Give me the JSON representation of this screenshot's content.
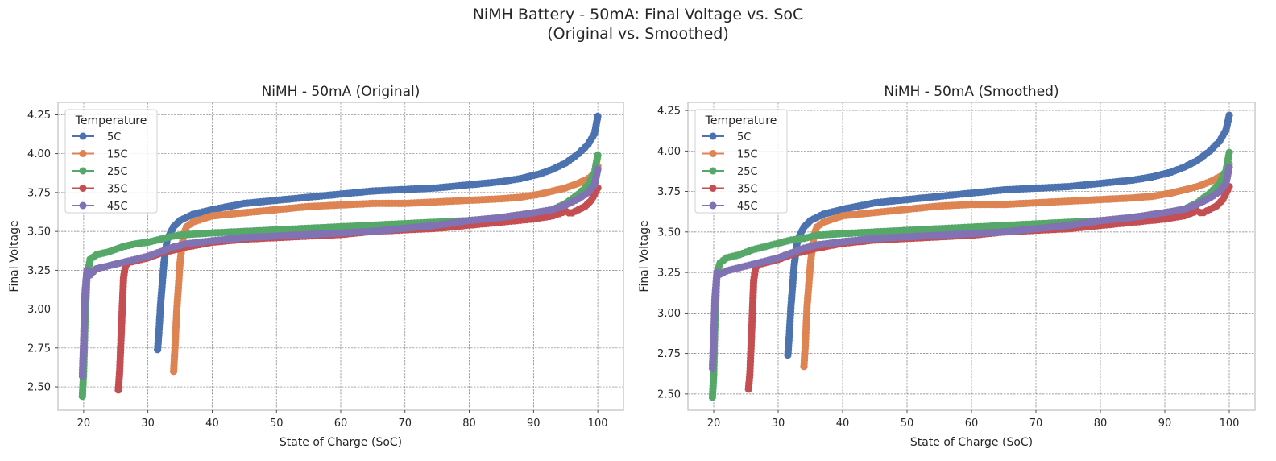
{
  "suptitle": {
    "line1": "NiMH Battery - 50mA: Final Voltage vs. SoC",
    "line2": "(Original vs. Smoothed)"
  },
  "colors": {
    "5C": "#4c72b0",
    "15C": "#dd8452",
    "25C": "#55a868",
    "35C": "#c44e52",
    "45C": "#8172b3",
    "grid": "#808080",
    "frame": "#cccccc"
  },
  "chart_data": [
    {
      "type": "line",
      "title": "NiMH - 50mA (Original)",
      "xlabel": "State of Charge (SoC)",
      "ylabel": "Final Voltage",
      "xlim": [
        16,
        104
      ],
      "ylim": [
        2.35,
        4.33
      ],
      "xticks": [
        20,
        30,
        40,
        50,
        60,
        70,
        80,
        90,
        100
      ],
      "yticks": [
        2.5,
        2.75,
        3.0,
        3.25,
        3.5,
        3.75,
        4.0,
        4.25
      ],
      "ytick_labels": [
        "2.50",
        "2.75",
        "3.00",
        "3.25",
        "3.50",
        "3.75",
        "4.00",
        "4.25"
      ],
      "grid": true,
      "legend": {
        "title": "Temperature",
        "placement": "top-left"
      },
      "series": [
        {
          "name": "5C",
          "x": [
            31.5,
            31.7,
            32.0,
            32.5,
            33.0,
            34.0,
            35.0,
            37.0,
            40.0,
            45.0,
            50.0,
            55.0,
            60.0,
            65.0,
            70.0,
            75.0,
            80.0,
            85.0,
            88.0,
            91.0,
            93.0,
            95.0,
            97.0,
            98.5,
            99.5,
            100.0
          ],
          "y": [
            2.74,
            2.85,
            3.05,
            3.3,
            3.45,
            3.53,
            3.57,
            3.61,
            3.64,
            3.68,
            3.7,
            3.72,
            3.74,
            3.76,
            3.77,
            3.78,
            3.8,
            3.82,
            3.84,
            3.87,
            3.9,
            3.94,
            4.0,
            4.06,
            4.13,
            4.24
          ]
        },
        {
          "name": "15C",
          "x": [
            34.0,
            34.2,
            34.5,
            35.0,
            35.5,
            36.0,
            37.0,
            40.0,
            45.0,
            50.0,
            55.0,
            60.0,
            65.0,
            70.0,
            75.0,
            80.0,
            85.0,
            88.0,
            91.0,
            93.0,
            95.0,
            97.0,
            98.5,
            99.5,
            100.0
          ],
          "y": [
            2.6,
            2.75,
            3.0,
            3.3,
            3.47,
            3.53,
            3.56,
            3.6,
            3.62,
            3.64,
            3.66,
            3.67,
            3.68,
            3.68,
            3.69,
            3.7,
            3.71,
            3.72,
            3.74,
            3.76,
            3.78,
            3.81,
            3.84,
            3.87,
            3.92
          ]
        },
        {
          "name": "25C",
          "x": [
            19.8,
            20.0,
            20.2,
            20.5,
            21.0,
            22.0,
            24.0,
            26.0,
            28.0,
            30.0,
            32.0,
            34.0,
            36.0,
            40.0,
            45.0,
            50.0,
            55.0,
            60.0,
            65.0,
            70.0,
            75.0,
            80.0,
            85.0,
            88.0,
            91.0,
            93.0,
            95.0,
            97.0,
            98.5,
            99.5,
            100.0
          ],
          "y": [
            2.44,
            2.6,
            2.9,
            3.2,
            3.32,
            3.35,
            3.37,
            3.4,
            3.42,
            3.43,
            3.45,
            3.47,
            3.48,
            3.49,
            3.5,
            3.51,
            3.52,
            3.53,
            3.54,
            3.55,
            3.56,
            3.57,
            3.58,
            3.59,
            3.61,
            3.64,
            3.68,
            3.74,
            3.8,
            3.88,
            3.99
          ]
        },
        {
          "name": "35C",
          "x": [
            25.4,
            25.6,
            25.8,
            26.0,
            26.2,
            26.5,
            27.0,
            28.0,
            30.0,
            32.0,
            34.0,
            36.0,
            40.0,
            45.0,
            50.0,
            55.0,
            60.0,
            65.0,
            70.0,
            75.0,
            80.0,
            85.0,
            90.0,
            93.0,
            95.0,
            95.5,
            96.0,
            97.0,
            98.0,
            99.0,
            100.0
          ],
          "y": [
            2.48,
            2.6,
            2.8,
            3.0,
            3.2,
            3.28,
            3.3,
            3.31,
            3.33,
            3.36,
            3.38,
            3.4,
            3.43,
            3.45,
            3.46,
            3.47,
            3.48,
            3.5,
            3.51,
            3.52,
            3.54,
            3.56,
            3.58,
            3.6,
            3.63,
            3.62,
            3.62,
            3.64,
            3.66,
            3.7,
            3.78
          ]
        },
        {
          "name": "45C",
          "x": [
            19.8,
            20.0,
            20.2,
            20.5,
            21.0,
            22.0,
            24.0,
            26.0,
            28.0,
            30.0,
            32.0,
            34.0,
            36.0,
            40.0,
            45.0,
            50.0,
            55.0,
            60.0,
            65.0,
            70.0,
            75.0,
            80.0,
            85.0,
            90.0,
            93.0,
            95.0,
            97.0,
            98.5,
            99.5,
            100.0
          ],
          "y": [
            2.57,
            2.8,
            3.1,
            3.25,
            3.22,
            3.26,
            3.28,
            3.3,
            3.32,
            3.34,
            3.37,
            3.4,
            3.42,
            3.44,
            3.46,
            3.47,
            3.48,
            3.49,
            3.5,
            3.52,
            3.54,
            3.57,
            3.59,
            3.62,
            3.64,
            3.67,
            3.71,
            3.75,
            3.8,
            3.9
          ]
        }
      ]
    },
    {
      "type": "line",
      "title": "NiMH - 50mA (Smoothed)",
      "xlabel": "State of Charge (SoC)",
      "ylabel": "Final Voltage",
      "xlim": [
        16,
        104
      ],
      "ylim": [
        2.4,
        4.3
      ],
      "xticks": [
        20,
        30,
        40,
        50,
        60,
        70,
        80,
        90,
        100
      ],
      "yticks": [
        2.5,
        2.75,
        3.0,
        3.25,
        3.5,
        3.75,
        4.0,
        4.25
      ],
      "ytick_labels": [
        "2.50",
        "2.75",
        "3.00",
        "3.25",
        "3.50",
        "3.75",
        "4.00",
        "4.25"
      ],
      "grid": true,
      "legend": {
        "title": "Temperature",
        "placement": "top-left"
      },
      "series": [
        {
          "name": "5C",
          "x": [
            31.5,
            31.7,
            32.0,
            32.5,
            33.0,
            34.0,
            35.0,
            37.0,
            40.0,
            45.0,
            50.0,
            55.0,
            60.0,
            65.0,
            70.0,
            75.0,
            80.0,
            85.0,
            88.0,
            91.0,
            93.0,
            95.0,
            97.0,
            98.5,
            99.5,
            100.0
          ],
          "y": [
            2.74,
            2.85,
            3.05,
            3.3,
            3.45,
            3.53,
            3.57,
            3.61,
            3.64,
            3.68,
            3.7,
            3.72,
            3.74,
            3.76,
            3.77,
            3.78,
            3.8,
            3.82,
            3.84,
            3.87,
            3.9,
            3.94,
            4.0,
            4.06,
            4.13,
            4.22
          ]
        },
        {
          "name": "15C",
          "x": [
            34.0,
            34.2,
            34.5,
            35.0,
            35.5,
            36.0,
            37.0,
            40.0,
            45.0,
            50.0,
            55.0,
            60.0,
            65.0,
            70.0,
            75.0,
            80.0,
            85.0,
            88.0,
            91.0,
            93.0,
            95.0,
            97.0,
            98.5,
            99.5,
            100.0
          ],
          "y": [
            2.67,
            2.8,
            3.05,
            3.3,
            3.47,
            3.53,
            3.56,
            3.6,
            3.62,
            3.64,
            3.66,
            3.67,
            3.67,
            3.68,
            3.69,
            3.7,
            3.71,
            3.72,
            3.74,
            3.76,
            3.78,
            3.81,
            3.84,
            3.87,
            3.92
          ]
        },
        {
          "name": "25C",
          "x": [
            19.8,
            20.0,
            20.2,
            20.5,
            21.0,
            22.0,
            24.0,
            26.0,
            28.0,
            30.0,
            32.0,
            34.0,
            36.0,
            40.0,
            45.0,
            50.0,
            55.0,
            60.0,
            65.0,
            70.0,
            75.0,
            80.0,
            85.0,
            88.0,
            91.0,
            93.0,
            95.0,
            97.0,
            98.5,
            99.5,
            100.0
          ],
          "y": [
            2.48,
            2.62,
            2.95,
            3.25,
            3.31,
            3.34,
            3.36,
            3.39,
            3.41,
            3.43,
            3.45,
            3.46,
            3.48,
            3.49,
            3.5,
            3.51,
            3.52,
            3.53,
            3.54,
            3.55,
            3.56,
            3.57,
            3.58,
            3.59,
            3.61,
            3.64,
            3.68,
            3.74,
            3.8,
            3.88,
            3.99
          ]
        },
        {
          "name": "35C",
          "x": [
            25.4,
            25.6,
            25.8,
            26.0,
            26.2,
            26.5,
            27.0,
            28.0,
            30.0,
            32.0,
            34.0,
            36.0,
            40.0,
            45.0,
            50.0,
            55.0,
            60.0,
            65.0,
            70.0,
            75.0,
            80.0,
            85.0,
            90.0,
            93.0,
            95.0,
            95.5,
            96.0,
            97.0,
            98.0,
            99.0,
            100.0
          ],
          "y": [
            2.53,
            2.62,
            2.8,
            3.0,
            3.2,
            3.28,
            3.3,
            3.31,
            3.33,
            3.36,
            3.38,
            3.4,
            3.43,
            3.45,
            3.46,
            3.47,
            3.48,
            3.5,
            3.51,
            3.52,
            3.54,
            3.56,
            3.58,
            3.6,
            3.63,
            3.62,
            3.62,
            3.64,
            3.66,
            3.7,
            3.78
          ]
        },
        {
          "name": "45C",
          "x": [
            19.8,
            20.0,
            20.2,
            20.5,
            21.0,
            22.0,
            24.0,
            26.0,
            28.0,
            30.0,
            32.0,
            34.0,
            36.0,
            40.0,
            45.0,
            50.0,
            55.0,
            60.0,
            65.0,
            70.0,
            75.0,
            80.0,
            85.0,
            90.0,
            93.0,
            95.0,
            97.0,
            98.5,
            99.5,
            100.0
          ],
          "y": [
            2.66,
            2.85,
            3.1,
            3.25,
            3.24,
            3.26,
            3.28,
            3.3,
            3.32,
            3.34,
            3.37,
            3.4,
            3.42,
            3.44,
            3.46,
            3.47,
            3.48,
            3.49,
            3.5,
            3.52,
            3.54,
            3.57,
            3.59,
            3.62,
            3.64,
            3.67,
            3.71,
            3.75,
            3.8,
            3.9
          ]
        }
      ]
    }
  ]
}
